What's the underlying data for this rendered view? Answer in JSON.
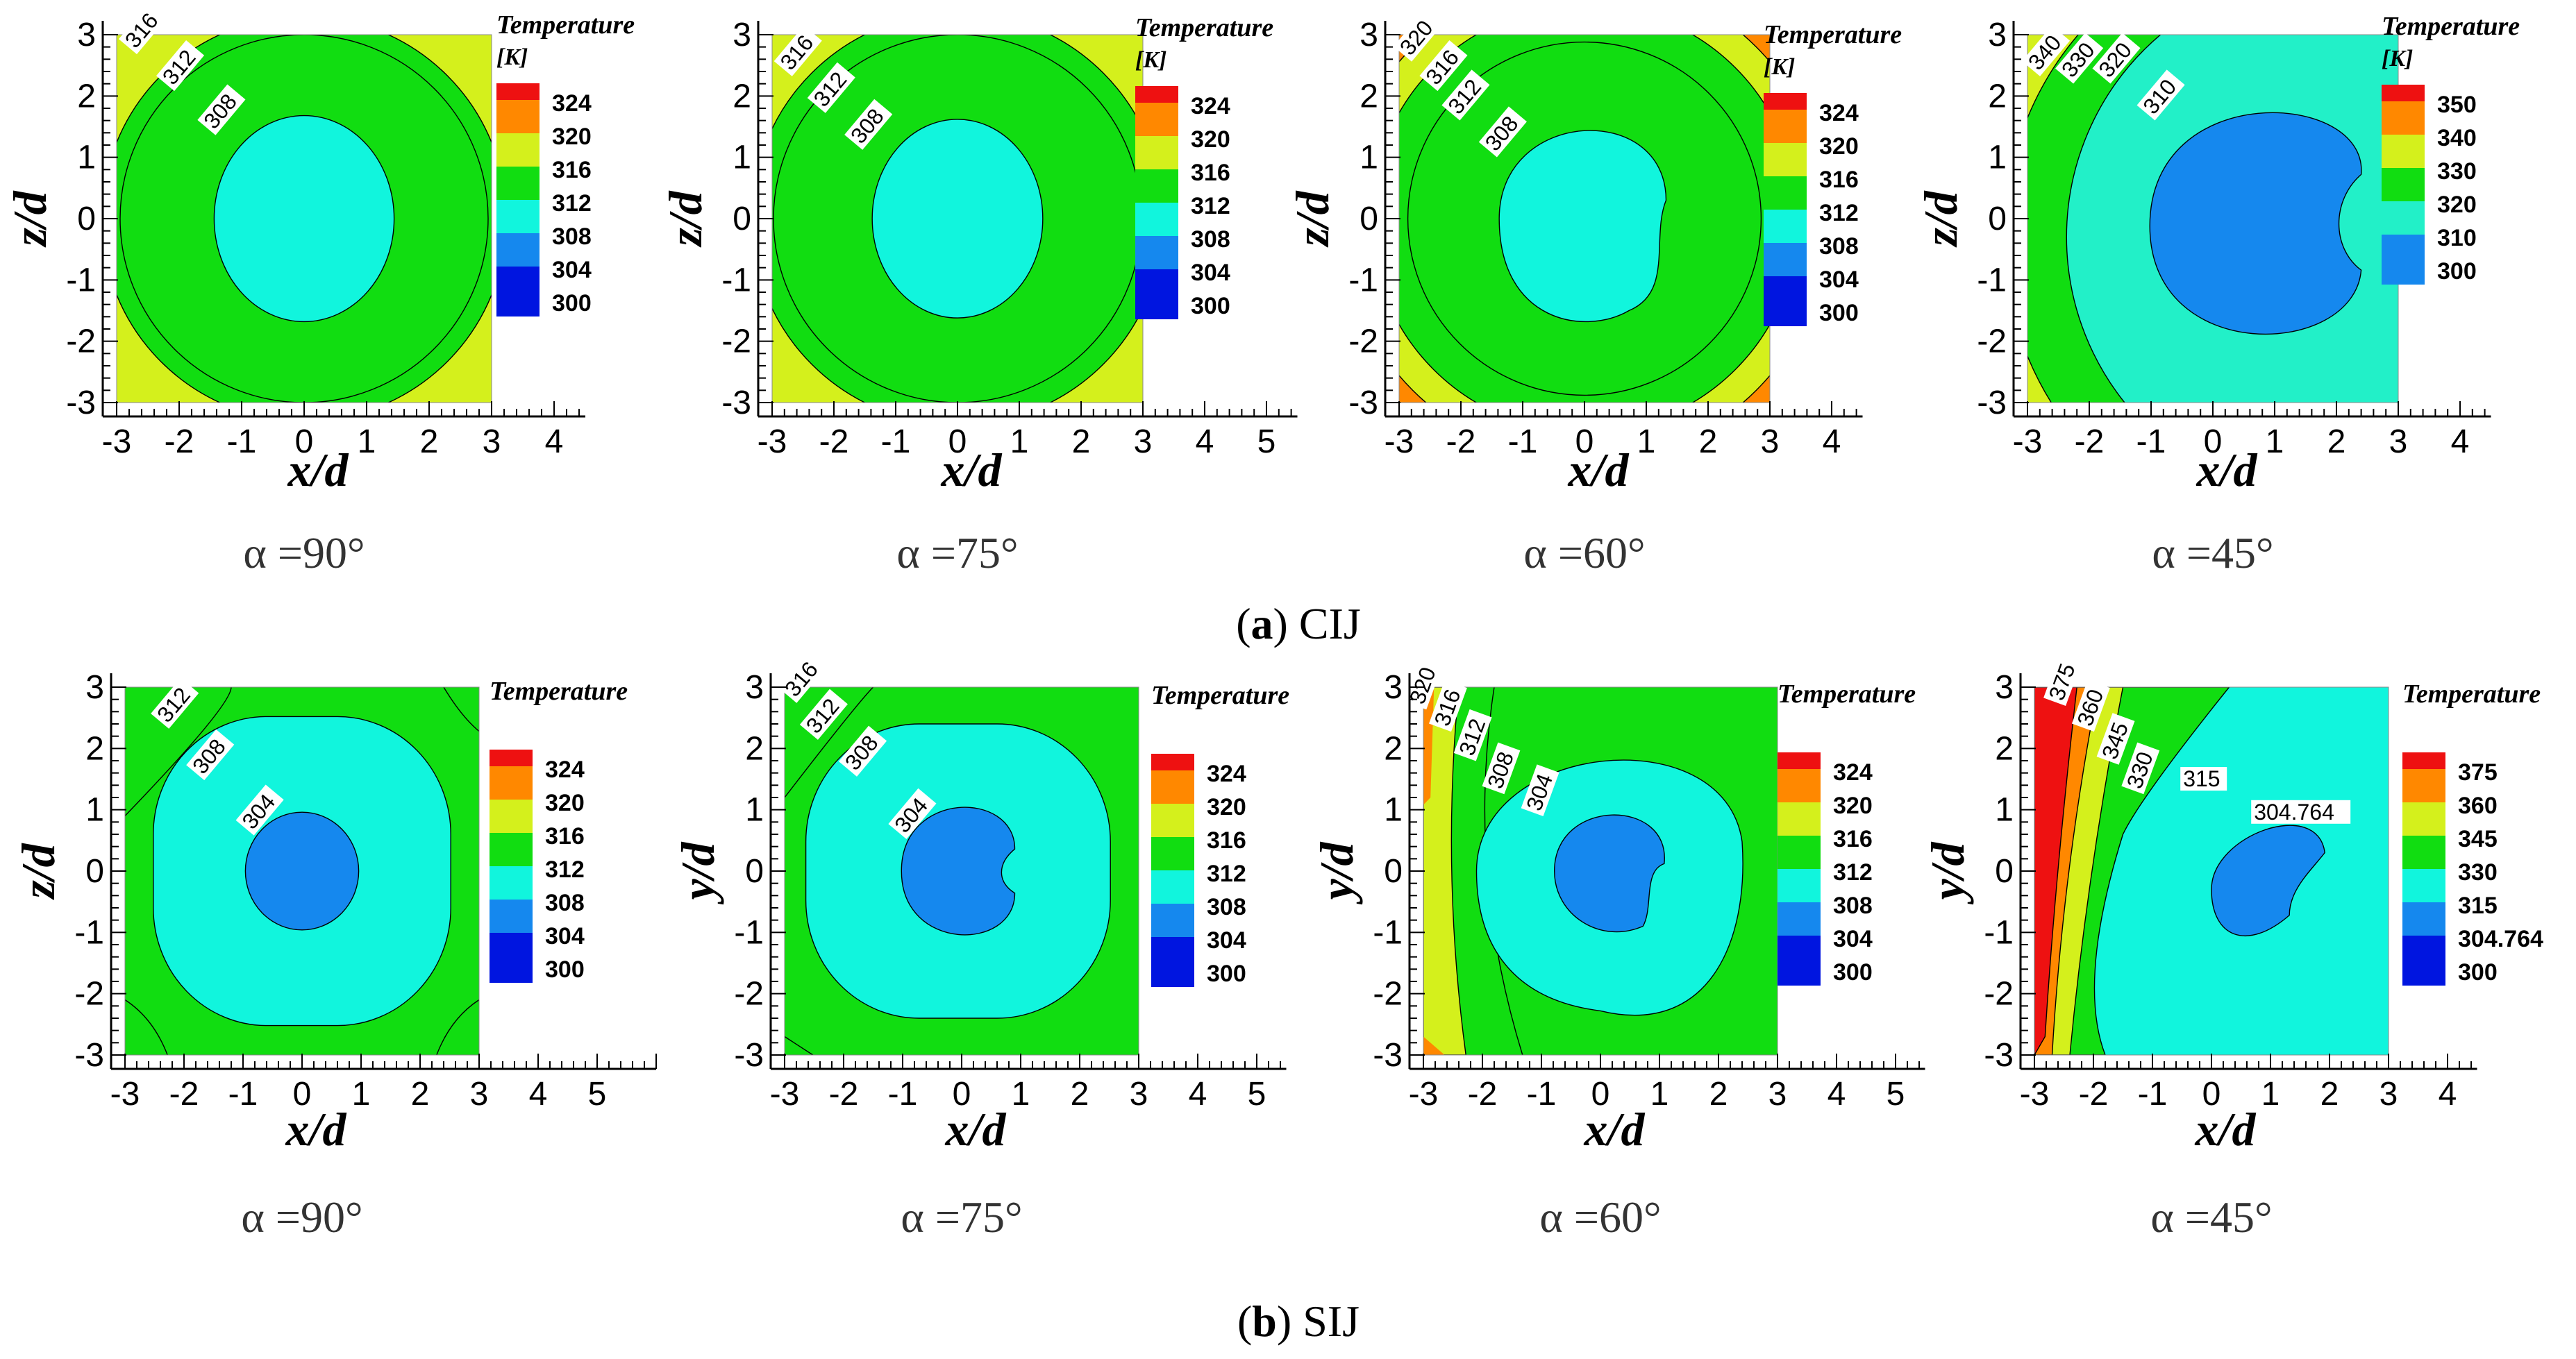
{
  "chart_data": [
    {
      "type": "contour",
      "panel": "a",
      "tick_x": [
        "-3",
        "-2",
        "-1",
        "0",
        "1",
        "2",
        "3",
        "4"
      ],
      "tick_y": [
        "-3",
        "-2",
        "-1",
        "0",
        "1",
        "2",
        "3"
      ],
      "xlim": [
        -3,
        4.5
      ],
      "ylim": [
        -3,
        3
      ],
      "xlabel": "x/d",
      "ylabel": "z/d",
      "legend_title": "Temperature",
      "legend_unit": "[K]",
      "legend_levels": [
        "324",
        "320",
        "316",
        "312",
        "308",
        "304",
        "300"
      ],
      "contour_labels": [
        "316",
        "312",
        "308"
      ],
      "angle_label": "α =90°",
      "inner_region_level": "308"
    },
    {
      "type": "contour",
      "panel": "a",
      "tick_x": [
        "-3",
        "-2",
        "-1",
        "0",
        "1",
        "2",
        "3",
        "4",
        "5"
      ],
      "tick_y": [
        "-3",
        "-2",
        "-1",
        "0",
        "1",
        "2",
        "3"
      ],
      "xlim": [
        -3,
        5.5
      ],
      "ylim": [
        -3,
        3
      ],
      "xlabel": "x/d",
      "ylabel": "z/d",
      "legend_title": "Temperature",
      "legend_unit": "[K]",
      "legend_levels": [
        "324",
        "320",
        "316",
        "312",
        "308",
        "304",
        "300"
      ],
      "contour_labels": [
        "316",
        "312",
        "308"
      ],
      "angle_label": "α =75°",
      "inner_region_level": "308"
    },
    {
      "type": "contour",
      "panel": "a",
      "tick_x": [
        "-3",
        "-2",
        "-1",
        "0",
        "1",
        "2",
        "3",
        "4"
      ],
      "tick_y": [
        "-3",
        "-2",
        "-1",
        "0",
        "1",
        "2",
        "3"
      ],
      "xlim": [
        -3,
        4.5
      ],
      "ylim": [
        -3,
        3
      ],
      "xlabel": "x/d",
      "ylabel": "z/d",
      "legend_title": "Temperature",
      "legend_unit": "[K]",
      "legend_levels": [
        "324",
        "320",
        "316",
        "312",
        "308",
        "304",
        "300"
      ],
      "contour_labels": [
        "320",
        "316",
        "312",
        "308"
      ],
      "angle_label": "α =60°",
      "inner_region_level": "308"
    },
    {
      "type": "contour",
      "panel": "a",
      "tick_x": [
        "-3",
        "-2",
        "-1",
        "0",
        "1",
        "2",
        "3",
        "4"
      ],
      "tick_y": [
        "-3",
        "-2",
        "-1",
        "0",
        "1",
        "2",
        "3"
      ],
      "xlim": [
        -3,
        4.5
      ],
      "ylim": [
        -3,
        3
      ],
      "xlabel": "x/d",
      "ylabel": "z/d",
      "legend_title": "Temperature",
      "legend_unit": "[K]",
      "legend_levels": [
        "350",
        "340",
        "330",
        "320",
        "310",
        "300"
      ],
      "contour_labels": [
        "340",
        "330",
        "320",
        "310"
      ],
      "angle_label": "α =45°",
      "inner_region_level": "310"
    },
    {
      "type": "contour",
      "panel": "b",
      "tick_x": [
        "-3",
        "-2",
        "-1",
        "0",
        "1",
        "2",
        "3",
        "4",
        "5"
      ],
      "tick_y": [
        "-3",
        "-2",
        "-1",
        "0",
        "1",
        "2",
        "3"
      ],
      "xlim": [
        -3,
        6
      ],
      "ylim": [
        -3,
        3
      ],
      "xlabel": "x/d",
      "ylabel": "z/d",
      "legend_title": "Temperature",
      "legend_levels": [
        "324",
        "320",
        "316",
        "312",
        "308",
        "304",
        "300"
      ],
      "contour_labels": [
        "312",
        "308",
        "304"
      ],
      "angle_label": "α =90°",
      "inner_region_level": "304"
    },
    {
      "type": "contour",
      "panel": "b",
      "tick_x": [
        "-3",
        "-2",
        "-1",
        "0",
        "1",
        "2",
        "3",
        "4",
        "5"
      ],
      "tick_y": [
        "-3",
        "-2",
        "-1",
        "0",
        "1",
        "2",
        "3"
      ],
      "xlim": [
        -3,
        5.5
      ],
      "ylim": [
        -3,
        3
      ],
      "xlabel": "x/d",
      "ylabel": "y/d",
      "legend_title": "Temperature",
      "legend_levels": [
        "324",
        "320",
        "316",
        "312",
        "308",
        "304",
        "300"
      ],
      "contour_labels": [
        "316",
        "312",
        "308",
        "304"
      ],
      "angle_label": "α =75°",
      "inner_region_level": "304"
    },
    {
      "type": "contour",
      "panel": "b",
      "tick_x": [
        "-3",
        "-2",
        "-1",
        "0",
        "1",
        "2",
        "3",
        "4",
        "5"
      ],
      "tick_y": [
        "-3",
        "-2",
        "-1",
        "0",
        "1",
        "2",
        "3"
      ],
      "xlim": [
        -3,
        5.5
      ],
      "ylim": [
        -3,
        3
      ],
      "xlabel": "x/d",
      "ylabel": "y/d",
      "legend_title": "Temperature",
      "legend_levels": [
        "324",
        "320",
        "316",
        "312",
        "308",
        "304",
        "300"
      ],
      "contour_labels": [
        "320",
        "316",
        "312",
        "308",
        "304"
      ],
      "angle_label": "α =60°",
      "inner_region_level": "304"
    },
    {
      "type": "contour",
      "panel": "b",
      "tick_x": [
        "-3",
        "-2",
        "-1",
        "0",
        "1",
        "2",
        "3",
        "4"
      ],
      "tick_y": [
        "-3",
        "-2",
        "-1",
        "0",
        "1",
        "2",
        "3"
      ],
      "xlim": [
        -3,
        4.5
      ],
      "ylim": [
        -3,
        3
      ],
      "xlabel": "x/d",
      "ylabel": "y/d",
      "legend_title": "Temperature",
      "legend_levels": [
        "375",
        "360",
        "345",
        "330",
        "315",
        "304.764",
        "300"
      ],
      "contour_labels": [
        "375",
        "360",
        "345",
        "330",
        "315",
        "304.764"
      ],
      "angle_label": "α =45°",
      "inner_region_level": "304.764"
    }
  ],
  "captions": {
    "a": {
      "letter": "a",
      "text": "CIJ"
    },
    "b": {
      "letter": "b",
      "text": "SIJ"
    }
  },
  "colors": {
    "red": "#ee1111",
    "orange": "#ff8800",
    "yellow": "#d4f01c",
    "green": "#11dd11",
    "cyan": "#11f5dd",
    "blue": "#1588ee",
    "navy": "#0015e0",
    "cyan45": "#22f0c8",
    "edge": "#000000"
  }
}
